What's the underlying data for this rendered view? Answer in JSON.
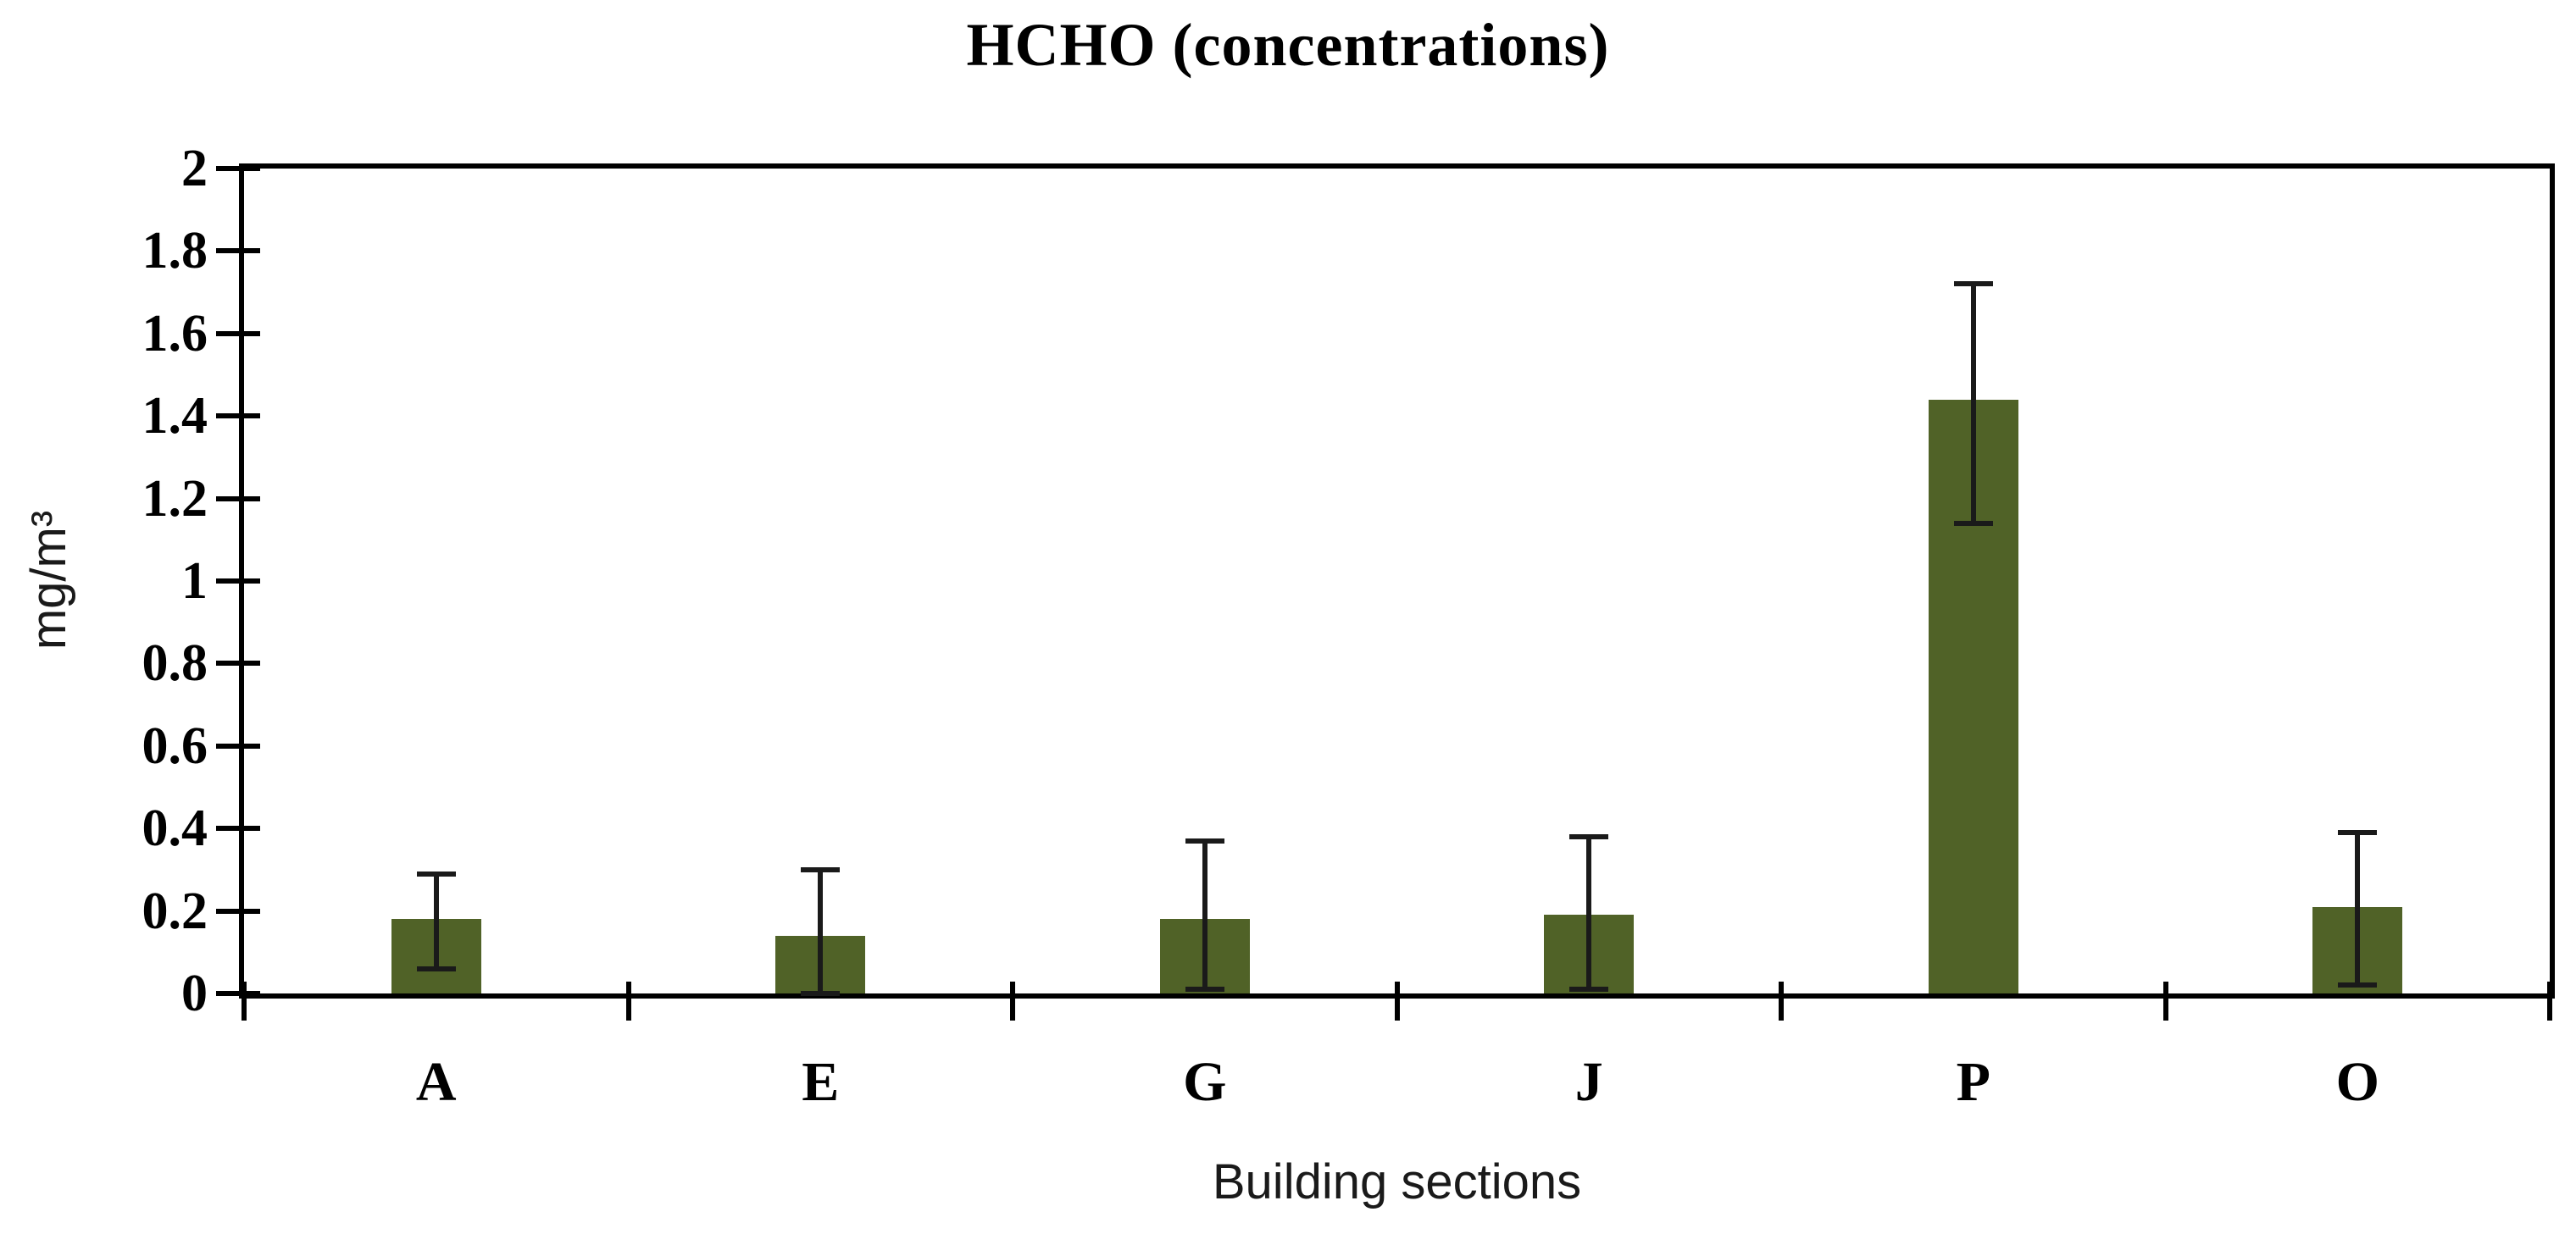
{
  "chart_data": {
    "type": "bar",
    "title": "HCHO (concentrations)",
    "xlabel": "Building sections",
    "ylabel": "mg/m³",
    "categories": [
      "A",
      "E",
      "G",
      "J",
      "P",
      "O"
    ],
    "values": [
      0.18,
      0.14,
      0.18,
      0.19,
      1.44,
      0.21
    ],
    "error_whisker_high": [
      0.29,
      0.3,
      0.37,
      0.38,
      1.72,
      0.39
    ],
    "error_whisker_low": [
      0.06,
      0.0,
      0.01,
      0.01,
      1.14,
      0.02
    ],
    "ylim": [
      0,
      2
    ],
    "yticks": [
      0,
      0.2,
      0.4,
      0.6,
      0.8,
      1,
      1.2,
      1.4,
      1.6,
      1.8,
      2
    ],
    "ytick_labels": [
      "0",
      "0.2",
      "0.4",
      "0.6",
      "0.8",
      "1",
      "1.2",
      "1.4",
      "1.6",
      "1.8",
      "2"
    ],
    "bar_color": "#506227",
    "axis_color": "#000000",
    "grid": false,
    "legend": false,
    "error_bars": "both directions with caps"
  }
}
